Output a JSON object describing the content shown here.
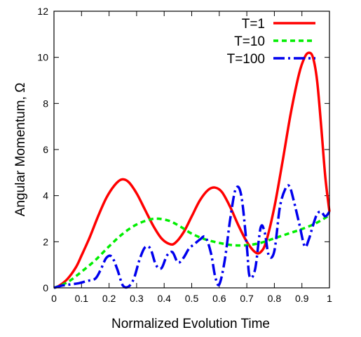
{
  "chart_data": {
    "type": "line",
    "title": "",
    "xlabel": "Normalized Evolution Time",
    "ylabel": "Angular Momentum, Ω",
    "xlim": [
      0,
      1
    ],
    "ylim": [
      0,
      12
    ],
    "x_ticks": [
      "0",
      "0.1",
      "0.2",
      "0.3",
      "0.4",
      "0.5",
      "0.6",
      "0.7",
      "0.8",
      "0.9",
      "1"
    ],
    "y_ticks": [
      "0",
      "2",
      "4",
      "6",
      "8",
      "10",
      "12"
    ],
    "grid": false,
    "legend_position": "top-right",
    "series": [
      {
        "name": "T=1",
        "color": "#ff0000",
        "style": "solid",
        "x": [
          0,
          0.02,
          0.05,
          0.08,
          0.1,
          0.13,
          0.16,
          0.19,
          0.22,
          0.245,
          0.27,
          0.3,
          0.33,
          0.36,
          0.39,
          0.42,
          0.44,
          0.47,
          0.5,
          0.53,
          0.56,
          0.585,
          0.61,
          0.64,
          0.67,
          0.7,
          0.73,
          0.75,
          0.77,
          0.8,
          0.83,
          0.86,
          0.89,
          0.91,
          0.925,
          0.94,
          0.955,
          0.97,
          0.985,
          1
        ],
        "y": [
          0,
          0.1,
          0.4,
          0.9,
          1.4,
          2.2,
          3.1,
          3.9,
          4.45,
          4.7,
          4.6,
          4.1,
          3.4,
          2.7,
          2.15,
          1.9,
          1.95,
          2.4,
          3.1,
          3.8,
          4.25,
          4.35,
          4.15,
          3.5,
          2.7,
          2.0,
          1.55,
          1.55,
          2.0,
          3.5,
          5.5,
          7.6,
          9.3,
          10.0,
          10.2,
          10.0,
          9.0,
          7.0,
          4.8,
          3.3
        ]
      },
      {
        "name": "T=10",
        "color": "#00ee00",
        "style": "dashed",
        "x": [
          0,
          0.05,
          0.1,
          0.15,
          0.2,
          0.25,
          0.3,
          0.35,
          0.38,
          0.42,
          0.46,
          0.5,
          0.55,
          0.6,
          0.65,
          0.7,
          0.75,
          0.8,
          0.85,
          0.9,
          0.95,
          1
        ],
        "y": [
          0,
          0.25,
          0.7,
          1.2,
          1.8,
          2.35,
          2.75,
          2.97,
          3.0,
          2.9,
          2.65,
          2.35,
          2.1,
          1.95,
          1.85,
          1.85,
          1.95,
          2.15,
          2.35,
          2.55,
          2.8,
          3.15
        ]
      },
      {
        "name": "T=100",
        "color": "#0000ee",
        "style": "dash-dot",
        "x": [
          0,
          0.03,
          0.06,
          0.09,
          0.12,
          0.15,
          0.17,
          0.19,
          0.21,
          0.23,
          0.25,
          0.27,
          0.29,
          0.31,
          0.33,
          0.35,
          0.37,
          0.39,
          0.41,
          0.43,
          0.45,
          0.47,
          0.49,
          0.51,
          0.53,
          0.55,
          0.57,
          0.585,
          0.6,
          0.62,
          0.64,
          0.66,
          0.68,
          0.7,
          0.71,
          0.73,
          0.75,
          0.765,
          0.78,
          0.8,
          0.82,
          0.84,
          0.855,
          0.87,
          0.89,
          0.91,
          0.925,
          0.94,
          0.955,
          0.97,
          0.985,
          1
        ],
        "y": [
          0,
          0.1,
          0.15,
          0.2,
          0.3,
          0.4,
          0.8,
          1.3,
          1.35,
          0.8,
          0.1,
          0.05,
          0.4,
          1.2,
          1.75,
          1.7,
          1.0,
          0.85,
          1.4,
          1.55,
          1.1,
          1.3,
          1.7,
          1.9,
          2.1,
          2.2,
          1.5,
          0.5,
          0.15,
          1.2,
          3.0,
          4.3,
          4.0,
          1.8,
          0.5,
          0.8,
          2.6,
          2.4,
          1.4,
          1.6,
          3.5,
          4.3,
          4.4,
          3.8,
          2.8,
          1.8,
          2.1,
          2.7,
          3.2,
          3.3,
          3.1,
          3.3
        ]
      }
    ]
  }
}
